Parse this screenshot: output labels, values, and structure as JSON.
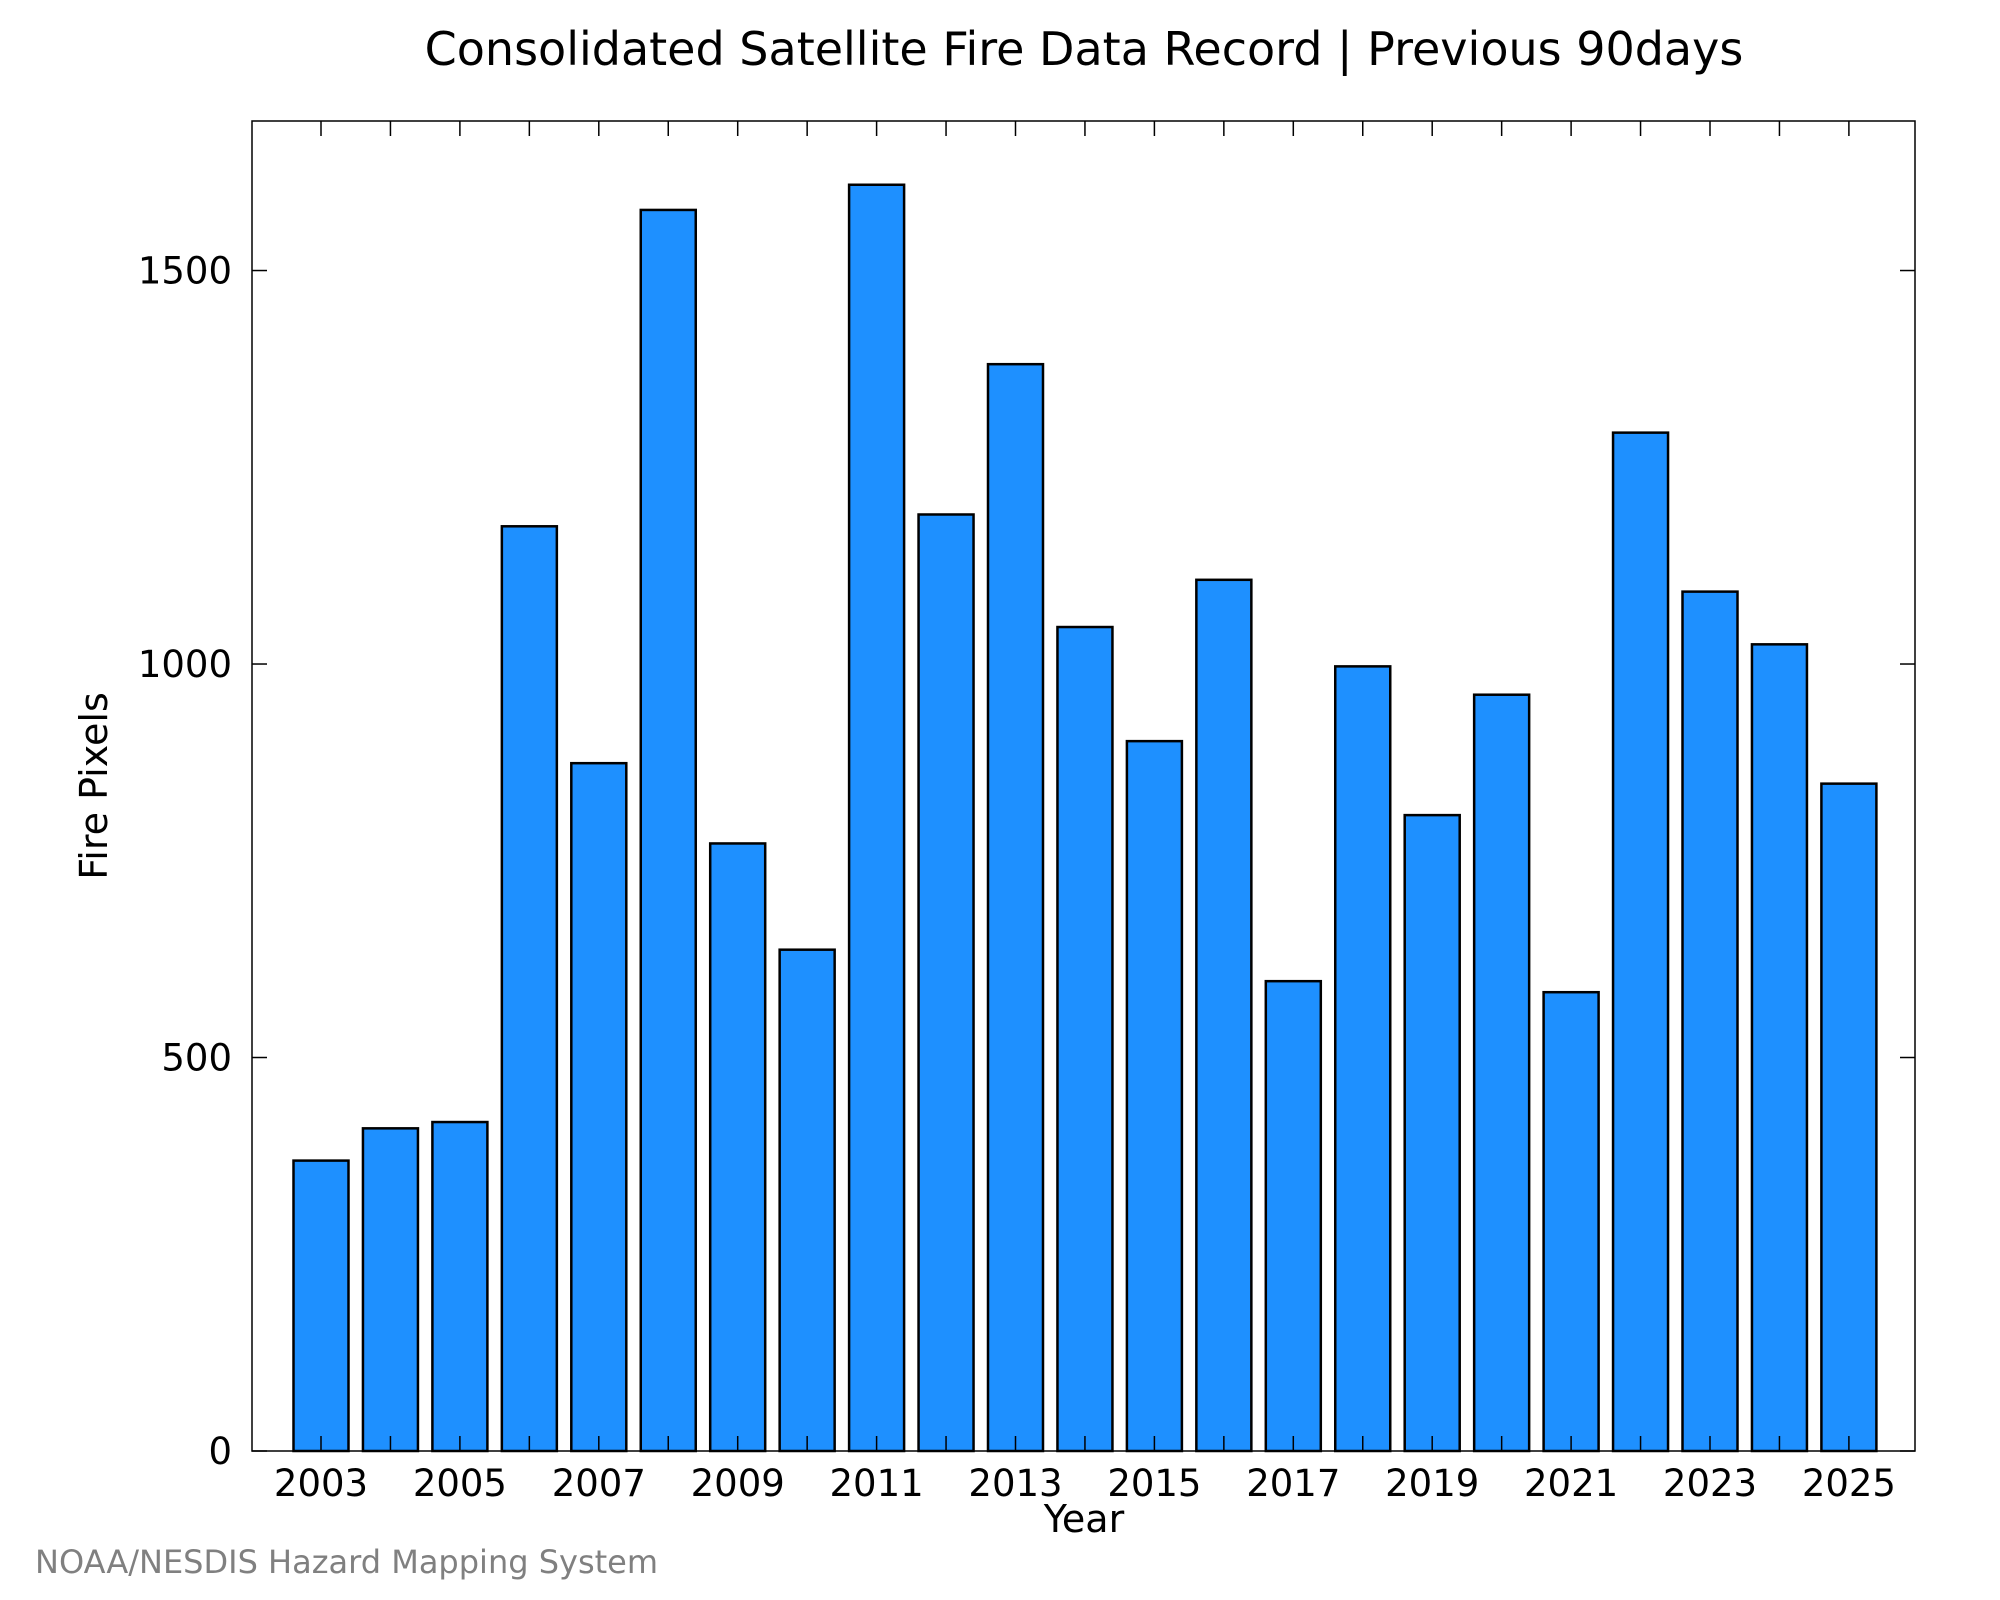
{
  "chart_data": {
    "type": "bar",
    "title": "Consolidated Satellite Fire Data Record | Previous 90days",
    "xlabel": "Year",
    "ylabel": "Fire Pixels",
    "credit": "NOAA/NESDIS Hazard Mapping System",
    "categories": [
      "2003",
      "2004",
      "2005",
      "2006",
      "2007",
      "2008",
      "2009",
      "2010",
      "2011",
      "2012",
      "2013",
      "2014",
      "2015",
      "2016",
      "2017",
      "2018",
      "2019",
      "2020",
      "2021",
      "2022",
      "2023",
      "2024",
      "2025"
    ],
    "values": [
      369,
      410,
      418,
      1175,
      874,
      1577,
      772,
      637,
      1609,
      1190,
      1381,
      1047,
      902,
      1107,
      597,
      997,
      808,
      961,
      583,
      1294,
      1092,
      1025,
      848
    ],
    "x_tick_labels": [
      "2003",
      "2005",
      "2007",
      "2009",
      "2011",
      "2013",
      "2015",
      "2017",
      "2019",
      "2021",
      "2023",
      "2025"
    ],
    "y_ticks": [
      0,
      500,
      1000,
      1500
    ],
    "ylim": [
      0,
      1690
    ],
    "grid": false,
    "legend": "none",
    "colors": {
      "bar_fill": "#1E90FF",
      "bar_stroke": "#000000",
      "axis": "#000000",
      "credit": "#808080"
    }
  }
}
